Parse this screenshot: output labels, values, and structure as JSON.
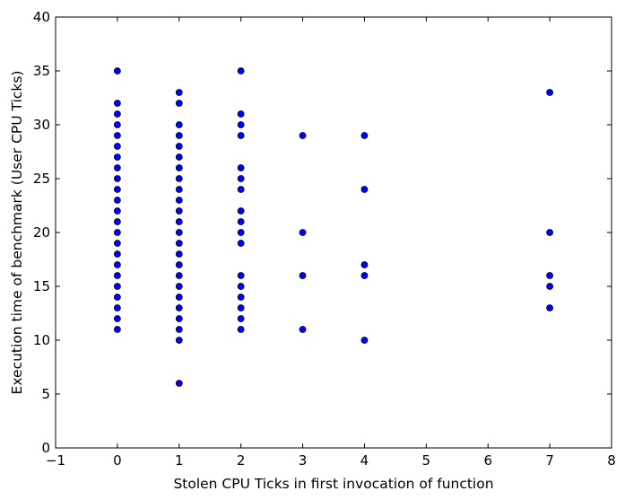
{
  "chart_data": {
    "type": "scatter",
    "title": "",
    "xlabel": "Stolen CPU Ticks in first invocation of function",
    "ylabel": "Execution time of benchmark (User CPU Ticks)",
    "xlim": [
      -1,
      8
    ],
    "ylim": [
      0,
      40
    ],
    "xticks": [
      -1,
      0,
      1,
      2,
      3,
      4,
      5,
      6,
      7,
      8
    ],
    "yticks": [
      0,
      5,
      10,
      15,
      20,
      25,
      30,
      35,
      40
    ],
    "grid": false,
    "legend": "none",
    "marker_color": "#0000ff",
    "marker_edge_color": "#000000",
    "points": [
      {
        "x": 0,
        "y": 35
      },
      {
        "x": 0,
        "y": 32
      },
      {
        "x": 0,
        "y": 31
      },
      {
        "x": 0,
        "y": 30
      },
      {
        "x": 0,
        "y": 29
      },
      {
        "x": 0,
        "y": 28
      },
      {
        "x": 0,
        "y": 27
      },
      {
        "x": 0,
        "y": 26
      },
      {
        "x": 0,
        "y": 25
      },
      {
        "x": 0,
        "y": 24
      },
      {
        "x": 0,
        "y": 23
      },
      {
        "x": 0,
        "y": 22
      },
      {
        "x": 0,
        "y": 21
      },
      {
        "x": 0,
        "y": 20
      },
      {
        "x": 0,
        "y": 19
      },
      {
        "x": 0,
        "y": 18
      },
      {
        "x": 0,
        "y": 17
      },
      {
        "x": 0,
        "y": 16
      },
      {
        "x": 0,
        "y": 15
      },
      {
        "x": 0,
        "y": 14
      },
      {
        "x": 0,
        "y": 13
      },
      {
        "x": 0,
        "y": 12
      },
      {
        "x": 0,
        "y": 11
      },
      {
        "x": 1,
        "y": 33
      },
      {
        "x": 1,
        "y": 32
      },
      {
        "x": 1,
        "y": 30
      },
      {
        "x": 1,
        "y": 29
      },
      {
        "x": 1,
        "y": 28
      },
      {
        "x": 1,
        "y": 27
      },
      {
        "x": 1,
        "y": 26
      },
      {
        "x": 1,
        "y": 25
      },
      {
        "x": 1,
        "y": 24
      },
      {
        "x": 1,
        "y": 23
      },
      {
        "x": 1,
        "y": 22
      },
      {
        "x": 1,
        "y": 21
      },
      {
        "x": 1,
        "y": 20
      },
      {
        "x": 1,
        "y": 19
      },
      {
        "x": 1,
        "y": 18
      },
      {
        "x": 1,
        "y": 17
      },
      {
        "x": 1,
        "y": 16
      },
      {
        "x": 1,
        "y": 15
      },
      {
        "x": 1,
        "y": 14
      },
      {
        "x": 1,
        "y": 13
      },
      {
        "x": 1,
        "y": 12
      },
      {
        "x": 1,
        "y": 11
      },
      {
        "x": 1,
        "y": 10
      },
      {
        "x": 1,
        "y": 6
      },
      {
        "x": 2,
        "y": 35
      },
      {
        "x": 2,
        "y": 31
      },
      {
        "x": 2,
        "y": 30
      },
      {
        "x": 2,
        "y": 29
      },
      {
        "x": 2,
        "y": 26
      },
      {
        "x": 2,
        "y": 25
      },
      {
        "x": 2,
        "y": 24
      },
      {
        "x": 2,
        "y": 22
      },
      {
        "x": 2,
        "y": 21
      },
      {
        "x": 2,
        "y": 20
      },
      {
        "x": 2,
        "y": 19
      },
      {
        "x": 2,
        "y": 16
      },
      {
        "x": 2,
        "y": 15
      },
      {
        "x": 2,
        "y": 14
      },
      {
        "x": 2,
        "y": 13
      },
      {
        "x": 2,
        "y": 12
      },
      {
        "x": 2,
        "y": 11
      },
      {
        "x": 3,
        "y": 29
      },
      {
        "x": 3,
        "y": 20
      },
      {
        "x": 3,
        "y": 16
      },
      {
        "x": 3,
        "y": 11
      },
      {
        "x": 4,
        "y": 29
      },
      {
        "x": 4,
        "y": 24
      },
      {
        "x": 4,
        "y": 17
      },
      {
        "x": 4,
        "y": 16
      },
      {
        "x": 4,
        "y": 10
      },
      {
        "x": 7,
        "y": 33
      },
      {
        "x": 7,
        "y": 20
      },
      {
        "x": 7,
        "y": 16
      },
      {
        "x": 7,
        "y": 15
      },
      {
        "x": 7,
        "y": 13
      }
    ]
  }
}
